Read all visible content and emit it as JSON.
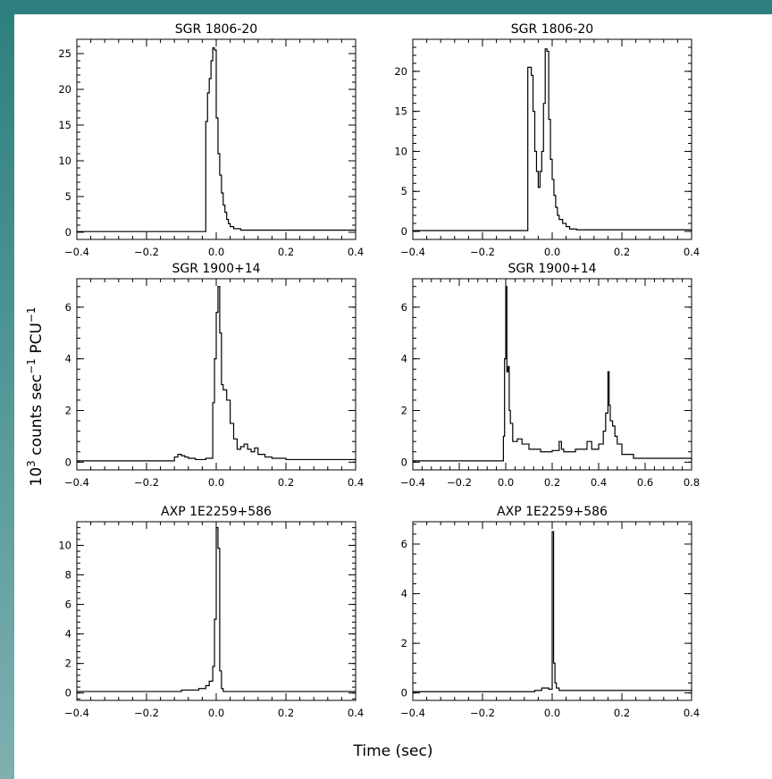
{
  "figure": {
    "ylabel_base": "10",
    "ylabel_exp": "3",
    "ylabel_mid": " counts sec",
    "ylabel_exp2": "−1",
    "ylabel_tail": " PCU",
    "ylabel_exp3": "−1",
    "xlabel": "Time (sec)"
  },
  "chart_data": [
    {
      "type": "line",
      "step": true,
      "title": "SGR 1806-20",
      "xlim": [
        -0.4,
        0.4
      ],
      "ylim": [
        -1,
        27
      ],
      "xticks": [
        -0.4,
        -0.2,
        0.0,
        0.2,
        0.4
      ],
      "xtick_labels": [
        "−0.4",
        "−0.2",
        "0.0",
        "0.2",
        "0.4"
      ],
      "yticks": [
        0,
        5,
        10,
        15,
        20,
        25
      ],
      "ytick_labels": [
        "0",
        "5",
        "10",
        "15",
        "20",
        "25"
      ],
      "x": [
        -0.4,
        -0.03,
        -0.025,
        -0.02,
        -0.015,
        -0.01,
        -0.005,
        0.0,
        0.005,
        0.01,
        0.015,
        0.02,
        0.025,
        0.03,
        0.035,
        0.04,
        0.05,
        0.07,
        0.4
      ],
      "y": [
        0.1,
        15.5,
        19.5,
        21.5,
        24,
        25.8,
        25.5,
        16,
        11,
        8,
        5.5,
        3.8,
        2.8,
        1.8,
        1.2,
        0.8,
        0.5,
        0.3,
        0.2
      ]
    },
    {
      "type": "line",
      "step": true,
      "title": "SGR 1806-20",
      "xlim": [
        -0.4,
        0.4
      ],
      "ylim": [
        -1,
        24
      ],
      "xticks": [
        -0.4,
        -0.2,
        0.0,
        0.2,
        0.4
      ],
      "xtick_labels": [
        "−0.4",
        "−0.2",
        "0.0",
        "0.2",
        "0.4"
      ],
      "yticks": [
        0,
        5,
        10,
        15,
        20
      ],
      "ytick_labels": [
        "0",
        "5",
        "10",
        "15",
        "20"
      ],
      "x": [
        -0.4,
        -0.07,
        -0.06,
        -0.055,
        -0.05,
        -0.045,
        -0.04,
        -0.035,
        -0.03,
        -0.025,
        -0.02,
        -0.015,
        -0.01,
        -0.005,
        0.0,
        0.005,
        0.01,
        0.015,
        0.02,
        0.03,
        0.04,
        0.05,
        0.07,
        0.4
      ],
      "y": [
        0.1,
        20.5,
        19.5,
        15,
        10,
        7.5,
        5.5,
        7.5,
        10,
        16,
        22.8,
        22.5,
        14,
        9,
        6.5,
        4.5,
        3,
        2,
        1.5,
        1,
        0.6,
        0.3,
        0.2,
        0.1
      ]
    },
    {
      "type": "line",
      "step": true,
      "title": "SGR 1900+14",
      "xlim": [
        -0.4,
        0.4
      ],
      "ylim": [
        -0.3,
        7.1
      ],
      "xticks": [
        -0.4,
        -0.2,
        0.0,
        0.2,
        0.4
      ],
      "xtick_labels": [
        "−0.4",
        "−0.2",
        "0.0",
        "0.2",
        "0.4"
      ],
      "yticks": [
        0,
        2,
        4,
        6
      ],
      "ytick_labels": [
        "0",
        "2",
        "4",
        "6"
      ],
      "x": [
        -0.4,
        -0.12,
        -0.11,
        -0.1,
        -0.09,
        -0.08,
        -0.06,
        -0.03,
        -0.01,
        -0.005,
        0.0,
        0.005,
        0.01,
        0.015,
        0.02,
        0.03,
        0.04,
        0.05,
        0.06,
        0.07,
        0.08,
        0.09,
        0.1,
        0.11,
        0.12,
        0.14,
        0.16,
        0.2,
        0.4
      ],
      "y": [
        0.05,
        0.2,
        0.3,
        0.25,
        0.2,
        0.15,
        0.1,
        0.15,
        2.3,
        4.0,
        5.8,
        6.8,
        5.0,
        3.0,
        2.8,
        2.4,
        1.5,
        0.9,
        0.5,
        0.6,
        0.7,
        0.5,
        0.4,
        0.55,
        0.3,
        0.2,
        0.15,
        0.1,
        0.05
      ]
    },
    {
      "type": "line",
      "step": true,
      "title": "SGR 1900+14",
      "xlim": [
        -0.4,
        0.8
      ],
      "ylim": [
        -0.3,
        7.1
      ],
      "xticks": [
        -0.4,
        -0.2,
        0.0,
        0.2,
        0.4,
        0.6,
        0.8
      ],
      "xtick_labels": [
        "−0.4",
        "−0.2",
        "0.0",
        "0.2",
        "0.4",
        "0.6",
        "0.8"
      ],
      "yticks": [
        0,
        2,
        4,
        6
      ],
      "ytick_labels": [
        "0",
        "2",
        "4",
        "6"
      ],
      "x": [
        -0.4,
        -0.01,
        -0.005,
        0.0,
        0.005,
        0.01,
        0.015,
        0.02,
        0.03,
        0.05,
        0.07,
        0.1,
        0.15,
        0.2,
        0.23,
        0.24,
        0.25,
        0.3,
        0.35,
        0.37,
        0.4,
        0.42,
        0.43,
        0.44,
        0.445,
        0.45,
        0.46,
        0.47,
        0.48,
        0.5,
        0.55,
        0.8
      ],
      "y": [
        0.05,
        1.0,
        4.0,
        6.8,
        3.5,
        3.7,
        2.0,
        1.5,
        0.8,
        0.9,
        0.7,
        0.5,
        0.4,
        0.45,
        0.8,
        0.5,
        0.4,
        0.5,
        0.8,
        0.5,
        0.7,
        1.2,
        1.9,
        3.5,
        2.2,
        1.6,
        1.4,
        1.0,
        0.7,
        0.3,
        0.15,
        0.05
      ]
    },
    {
      "type": "line",
      "step": true,
      "title": "AXP 1E2259+586",
      "xlim": [
        -0.4,
        0.4
      ],
      "ylim": [
        -0.5,
        11.6
      ],
      "xticks": [
        -0.4,
        -0.2,
        0.0,
        0.2,
        0.4
      ],
      "xtick_labels": [
        "−0.4",
        "−0.2",
        "0.0",
        "0.2",
        "0.4"
      ],
      "yticks": [
        0,
        2,
        4,
        6,
        8,
        10
      ],
      "ytick_labels": [
        "0",
        "2",
        "4",
        "6",
        "8",
        "10"
      ],
      "x": [
        -0.4,
        -0.1,
        -0.05,
        -0.03,
        -0.02,
        -0.01,
        -0.005,
        0.0,
        0.005,
        0.01,
        0.015,
        0.02,
        0.4
      ],
      "y": [
        0.1,
        0.2,
        0.3,
        0.5,
        0.8,
        1.8,
        5.0,
        11.2,
        9.8,
        1.5,
        0.3,
        0.1,
        0.1
      ]
    },
    {
      "type": "line",
      "step": true,
      "title": "AXP 1E2259+586",
      "xlim": [
        -0.4,
        0.4
      ],
      "ylim": [
        -0.3,
        6.9
      ],
      "xticks": [
        -0.4,
        -0.2,
        0.0,
        0.2,
        0.4
      ],
      "xtick_labels": [
        "−0.4",
        "−0.2",
        "0.0",
        "0.2",
        "0.4"
      ],
      "yticks": [
        0,
        2,
        4,
        6
      ],
      "ytick_labels": [
        "0",
        "2",
        "4",
        "6"
      ],
      "x": [
        -0.4,
        -0.05,
        -0.03,
        -0.01,
        0.0,
        0.004,
        0.008,
        0.012,
        0.02,
        0.4
      ],
      "y": [
        0.05,
        0.1,
        0.2,
        0.15,
        6.5,
        1.2,
        0.4,
        0.2,
        0.1,
        0.05
      ]
    }
  ]
}
